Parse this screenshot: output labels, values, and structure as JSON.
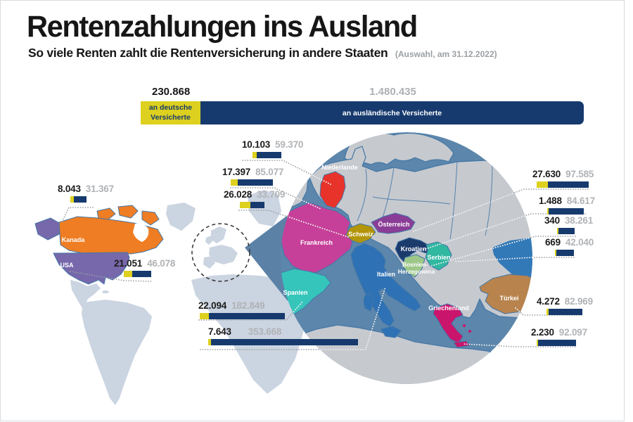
{
  "header": {
    "title": "Rentenzahlungen ins Ausland",
    "subtitle": "So viele Renten zahlt die Rentenversicherung in andere Staaten",
    "note": "(Auswahl, am 31.12.2022)"
  },
  "legend": {
    "domestic_value": "230.868",
    "domestic_label": "an deutsche Versicherte",
    "domestic_n": 230868,
    "foreign_value": "1.480.435",
    "foreign_label": "an ausländische Versicherte",
    "foreign_n": 1480435
  },
  "colors": {
    "domestic_bar": "#ddd01e",
    "foreign_bar": "#163a6e",
    "gray_value": "#b0b3b6",
    "globe_sea": "#5c86ab",
    "globe_land": "#c6c9ce",
    "worldmap_land": "#cbd4e1"
  },
  "countries": [
    {
      "id": "kanada",
      "map_label": "Kanada",
      "domestic": "8.043",
      "foreign": "31.367",
      "domestic_n": 8043,
      "foreign_n": 31367,
      "color": "#ef7d23"
    },
    {
      "id": "usa",
      "map_label": "USA",
      "domestic": "21.051",
      "foreign": "46.078",
      "domestic_n": 21051,
      "foreign_n": 46078,
      "color": "#7668ab"
    },
    {
      "id": "niederlande",
      "map_label": "Niederlande",
      "domestic": "10.103",
      "foreign": "59.370",
      "domestic_n": 10103,
      "foreign_n": 59370,
      "color": "#e8332b"
    },
    {
      "id": "frankreich",
      "map_label": "Frankreich",
      "domestic": "17.397",
      "foreign": "85.077",
      "domestic_n": 17397,
      "foreign_n": 85077,
      "color": "#c64099"
    },
    {
      "id": "schweiz",
      "map_label": "Schweiz",
      "domestic": "26.028",
      "foreign": "33.709",
      "domestic_n": 26028,
      "foreign_n": 33709,
      "color": "#b3950a"
    },
    {
      "id": "spanien",
      "map_label": "Spanien",
      "domestic": "22.094",
      "foreign": "182.849",
      "domestic_n": 22094,
      "foreign_n": 182849,
      "color": "#36c5bb"
    },
    {
      "id": "italien",
      "map_label": "Italien",
      "domestic": "7.643",
      "foreign": "353.668",
      "domestic_n": 7643,
      "foreign_n": 353668,
      "color": "#2e71b5"
    },
    {
      "id": "oesterreich",
      "map_label": "Österreich",
      "domestic": "27.630",
      "foreign": "97.585",
      "domestic_n": 27630,
      "foreign_n": 97585,
      "color": "#8a3d96"
    },
    {
      "id": "kroatien",
      "map_label": "Kroatien",
      "domestic": "1.488",
      "foreign": "84.617",
      "domestic_n": 1488,
      "foreign_n": 84617,
      "color": "#1c3b6d"
    },
    {
      "id": "bosnien",
      "map_label": "Bosnien-",
      "map_label2": "Herzegowina",
      "domestic": "340",
      "foreign": "38.261",
      "domestic_n": 340,
      "foreign_n": 38261,
      "color": "#9dc789"
    },
    {
      "id": "serbien",
      "map_label": "Serbien",
      "domestic": "669",
      "foreign": "42.040",
      "domestic_n": 669,
      "foreign_n": 42040,
      "color": "#31b8a1"
    },
    {
      "id": "tuerkei",
      "map_label": "Türkei",
      "domestic": "4.272",
      "foreign": "82.969",
      "domestic_n": 4272,
      "foreign_n": 82969,
      "color": "#b8834d"
    },
    {
      "id": "griechenland",
      "map_label": "Griechenland",
      "domestic": "2.230",
      "foreign": "92.097",
      "domestic_n": 2230,
      "foreign_n": 92097,
      "color": "#ca156c"
    }
  ],
  "chart_data": {
    "type": "bar",
    "title": "Rentenzahlungen ins Ausland",
    "subtitle": "So viele Renten zahlt die Rentenversicherung in andere Staaten",
    "note": "Auswahl, am 31.12.2022",
    "series": [
      "an deutsche Versicherte",
      "an ausländische Versicherte"
    ],
    "totals": {
      "an_deutsche_Versicherte": 230868,
      "an_auslaendische_Versicherte": 1480435
    },
    "categories": [
      "Kanada",
      "USA",
      "Niederlande",
      "Frankreich",
      "Schweiz",
      "Spanien",
      "Italien",
      "Österreich",
      "Kroatien",
      "Bosnien-Herzegowina",
      "Serbien",
      "Türkei",
      "Griechenland"
    ],
    "values_an_deutsche": [
      8043,
      21051,
      10103,
      17397,
      26028,
      22094,
      7643,
      27630,
      1488,
      340,
      669,
      4272,
      2230
    ],
    "values_an_auslaendische": [
      31367,
      46078,
      59370,
      85077,
      33709,
      182849,
      353668,
      97585,
      84617,
      38261,
      42040,
      82969,
      92097
    ]
  }
}
